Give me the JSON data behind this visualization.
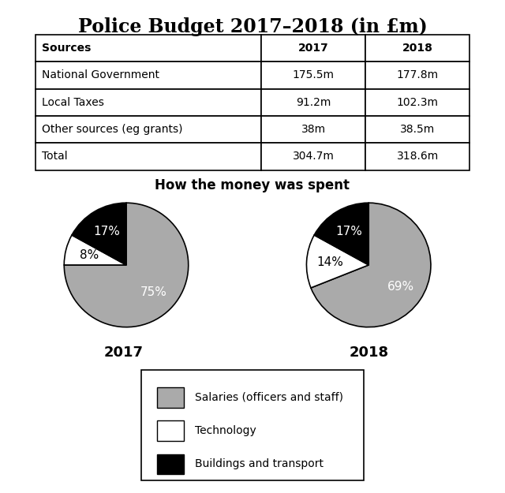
{
  "title": "Police Budget 2017–2018 (in £m)",
  "table": {
    "headers": [
      "Sources",
      "2017",
      "2018"
    ],
    "rows": [
      [
        "National Government",
        "175.5m",
        "177.8m"
      ],
      [
        "Local Taxes",
        "91.2m",
        "102.3m"
      ],
      [
        "Other sources (eg grants)",
        "38m",
        "38.5m"
      ],
      [
        "Total",
        "304.7m",
        "318.6m"
      ]
    ]
  },
  "pie_title": "How the money was spent",
  "pie_2017": {
    "label": "2017",
    "values": [
      75,
      8,
      17
    ],
    "colors": [
      "#aaaaaa",
      "#ffffff",
      "#000000"
    ],
    "pct_labels": [
      "75%",
      "8%",
      "17%"
    ],
    "pct_colors": [
      "white",
      "black",
      "white"
    ],
    "startangle": 90
  },
  "pie_2018": {
    "label": "2018",
    "values": [
      69,
      14,
      17
    ],
    "colors": [
      "#aaaaaa",
      "#ffffff",
      "#000000"
    ],
    "pct_labels": [
      "69%",
      "14%",
      "17%"
    ],
    "pct_colors": [
      "white",
      "black",
      "white"
    ],
    "startangle": 90
  },
  "legend_labels": [
    "Salaries (officers and staff)",
    "Technology",
    "Buildings and transport"
  ],
  "legend_colors": [
    "#aaaaaa",
    "#ffffff",
    "#000000"
  ],
  "background_color": "#ffffff",
  "title_fontsize": 17,
  "pie_title_fontsize": 12,
  "pie_label_fontsize": 11,
  "pie_year_fontsize": 13,
  "table_fontsize": 10
}
